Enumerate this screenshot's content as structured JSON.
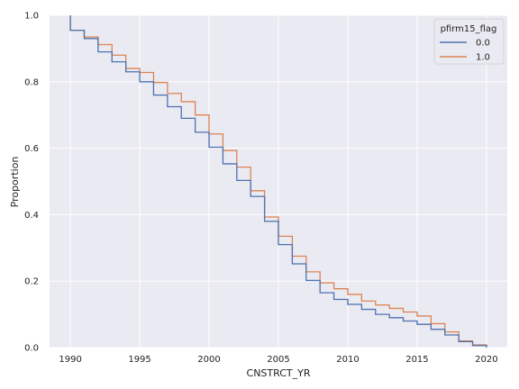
{
  "chart_data": {
    "type": "line",
    "drawstyle": "steps-post",
    "title": "",
    "xlabel": "CNSTRCT_YR",
    "ylabel": "Proportion",
    "xlim": [
      1988.5,
      2021.5
    ],
    "ylim": [
      0,
      1
    ],
    "xticks": [
      1990,
      1995,
      2000,
      2005,
      2010,
      2015,
      2020
    ],
    "yticks": [
      0.0,
      0.2,
      0.4,
      0.6,
      0.8,
      1.0
    ],
    "xtick_labels": [
      "1990",
      "1995",
      "2000",
      "2005",
      "2010",
      "2015",
      "2020"
    ],
    "ytick_labels": [
      "0.0",
      "0.2",
      "0.4",
      "0.6",
      "0.8",
      "1.0"
    ],
    "grid": true,
    "background": "#EAEAF2",
    "legend": {
      "title": "pfirm15_flag",
      "placement": "top-right"
    },
    "x": [
      1990,
      1991,
      1992,
      1993,
      1994,
      1995,
      1996,
      1997,
      1998,
      1999,
      2000,
      2001,
      2002,
      2003,
      2004,
      2005,
      2006,
      2007,
      2008,
      2009,
      2010,
      2011,
      2012,
      2013,
      2014,
      2015,
      2016,
      2017,
      2018,
      2019,
      2020
    ],
    "series": [
      {
        "name": "0.0",
        "color": "#4C72B0",
        "values": [
          0.955,
          0.93,
          0.89,
          0.86,
          0.83,
          0.8,
          0.76,
          0.725,
          0.69,
          0.648,
          0.603,
          0.553,
          0.503,
          0.455,
          0.38,
          0.31,
          0.252,
          0.202,
          0.165,
          0.145,
          0.13,
          0.115,
          0.1,
          0.09,
          0.08,
          0.07,
          0.055,
          0.038,
          0.018,
          0.006,
          0.0
        ]
      },
      {
        "name": "1.0",
        "color": "#DD8452",
        "values": [
          0.955,
          0.935,
          0.912,
          0.88,
          0.84,
          0.828,
          0.798,
          0.765,
          0.74,
          0.7,
          0.643,
          0.593,
          0.543,
          0.472,
          0.393,
          0.335,
          0.275,
          0.228,
          0.195,
          0.177,
          0.16,
          0.14,
          0.128,
          0.118,
          0.107,
          0.095,
          0.072,
          0.047,
          0.02,
          0.008,
          0.0
        ]
      }
    ]
  }
}
